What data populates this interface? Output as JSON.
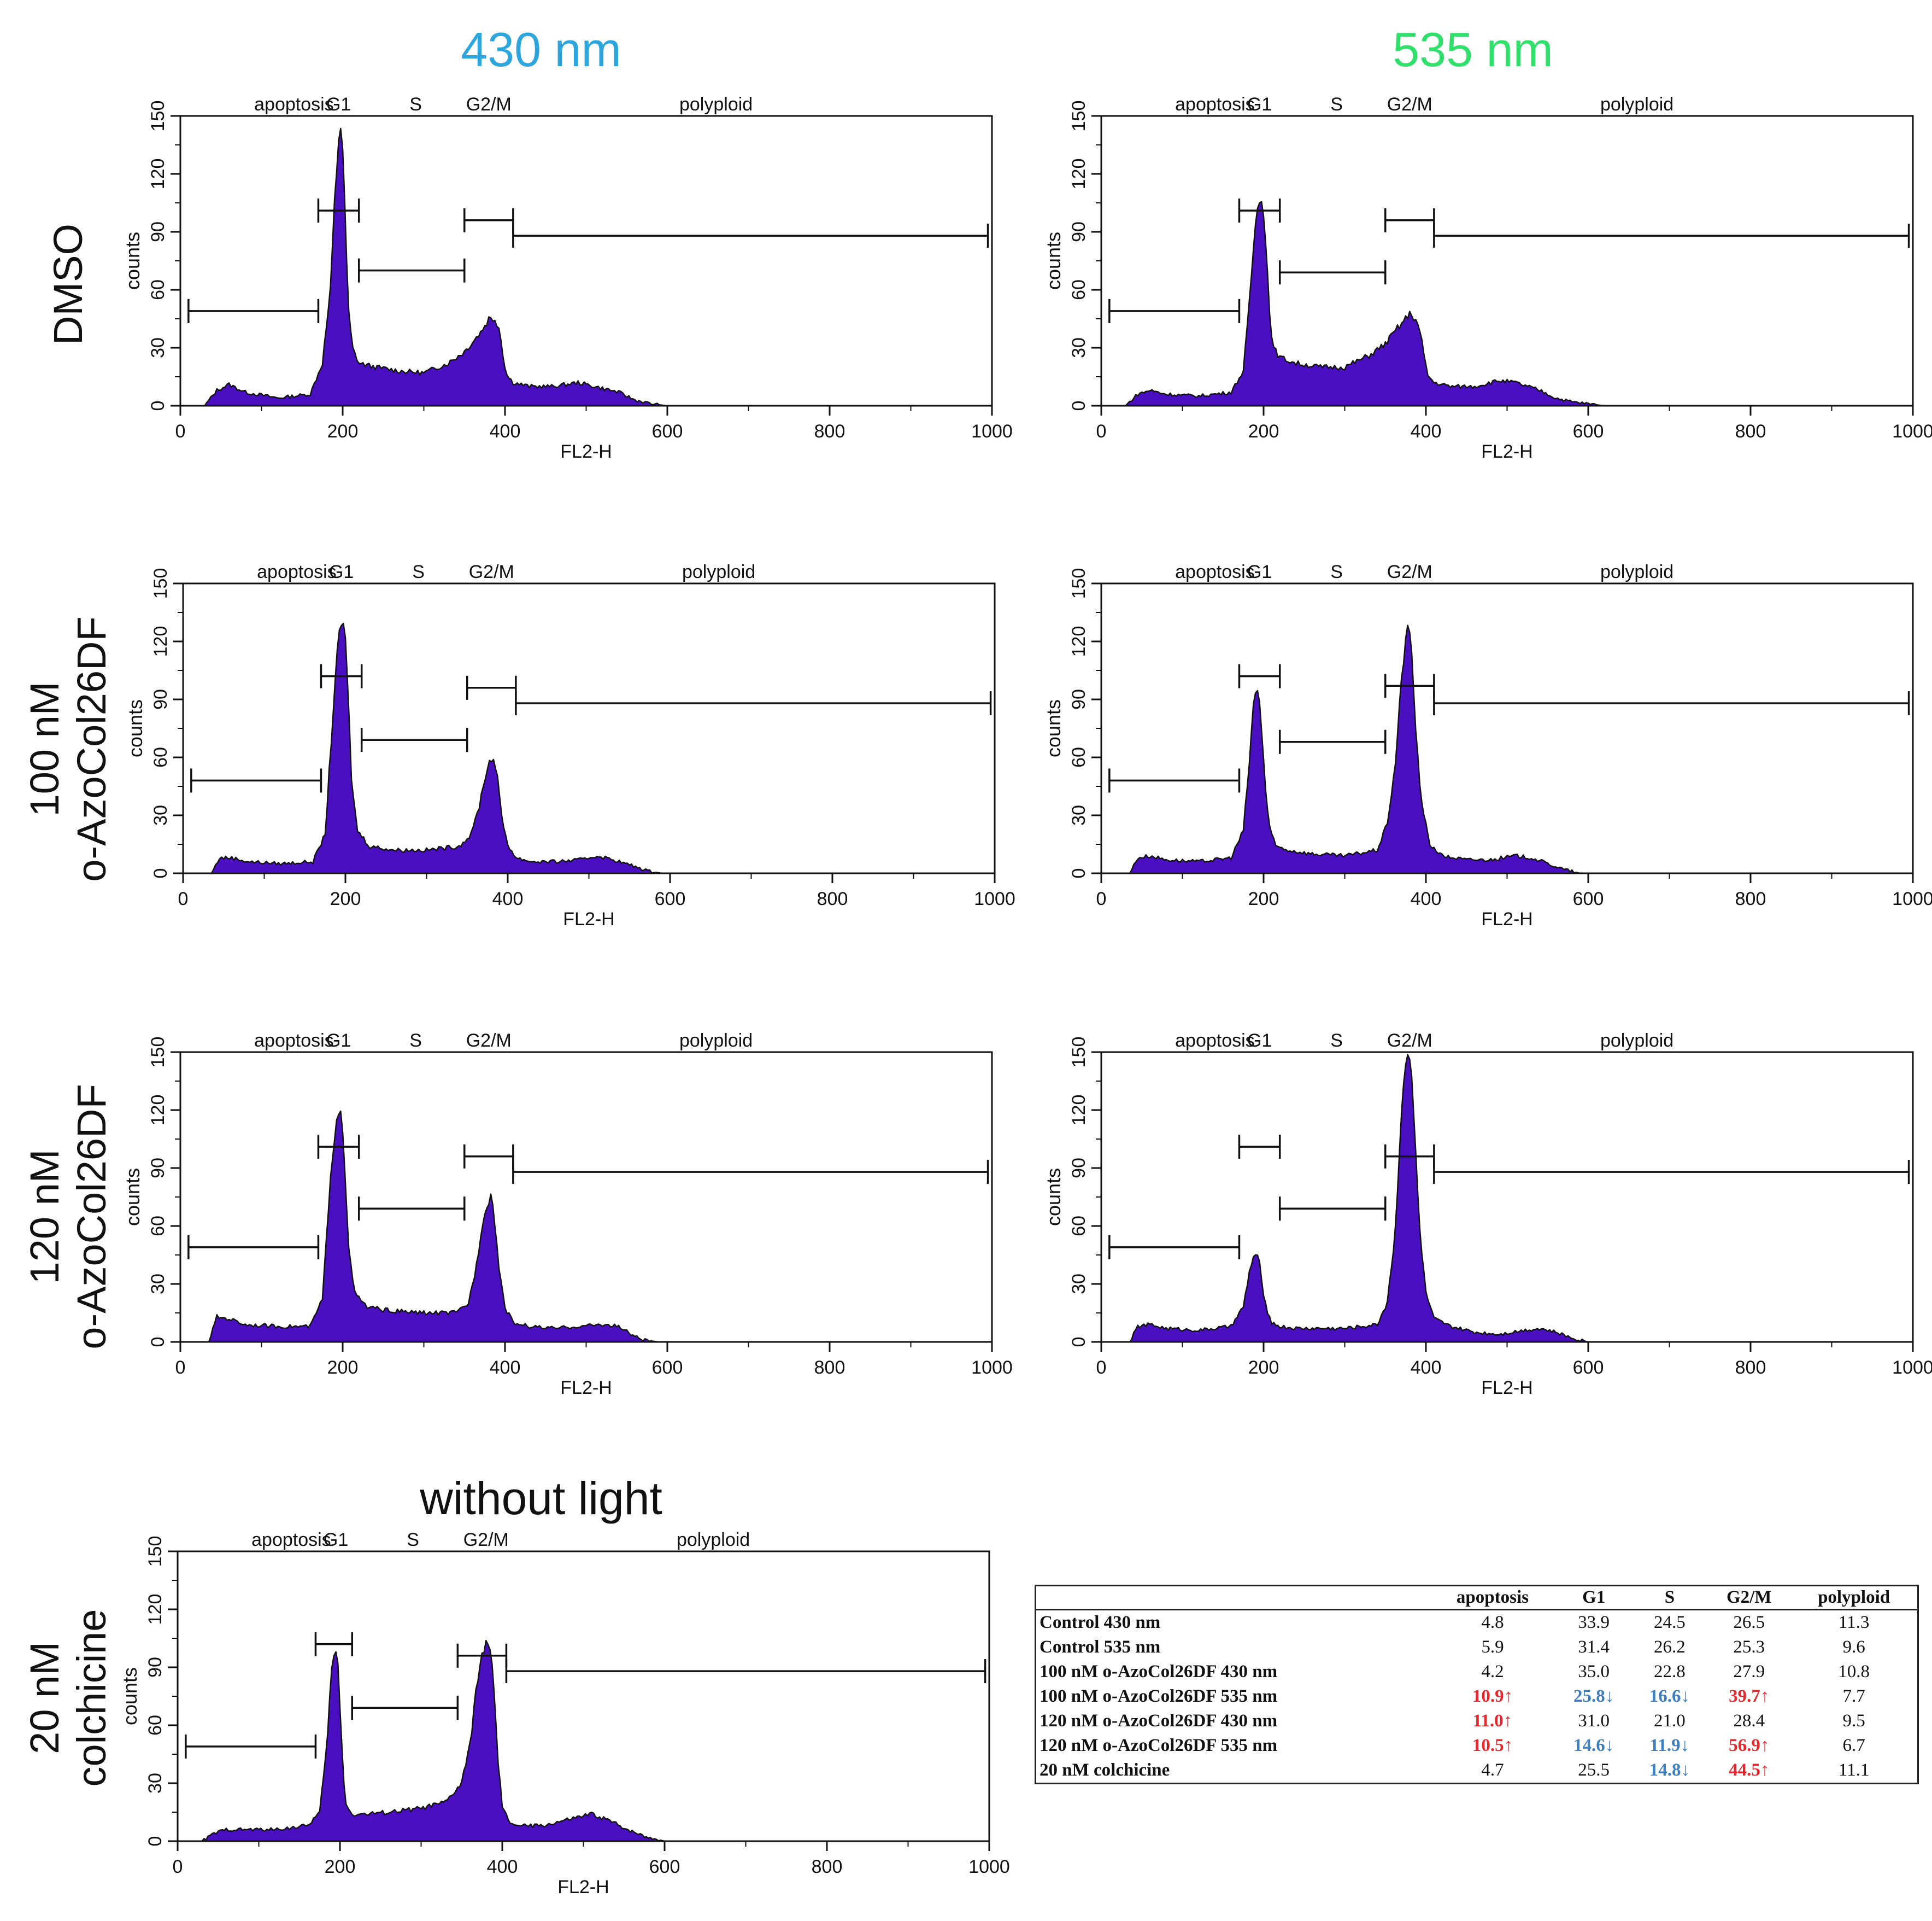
{
  "column_headers": [
    {
      "text": "430 nm",
      "color": "#2ca6dc"
    },
    {
      "text": "535 nm",
      "color": "#2fe06b"
    }
  ],
  "row_labels": [
    "DMSO",
    "100 nM\no-AzoCol26DF",
    "120 nM\no-AzoCol26DF",
    "20 nM\ncolchicine"
  ],
  "without_light_label": "without light",
  "colors": {
    "histogram_fill": "#4b0fc2",
    "histogram_edge": "#111111",
    "up_arrow": "#e8262c",
    "down_arrow": "#3d7fc1"
  },
  "chart_data": [
    {
      "type": "area",
      "id": "dmso-430",
      "xlabel": "FL2-H",
      "ylabel": "counts",
      "xlim": [
        0,
        1000
      ],
      "ylim": [
        0,
        150
      ],
      "xticks": [
        0,
        200,
        400,
        600,
        800,
        1000
      ],
      "yticks": [
        0,
        30,
        60,
        90,
        120,
        150
      ],
      "gate_labels": [
        "apoptosis",
        "G1",
        "S",
        "G2/M",
        "polyploid"
      ],
      "gates": [
        {
          "from": 10,
          "to": 170,
          "y": 49
        },
        {
          "from": 170,
          "to": 220,
          "y": 101
        },
        {
          "from": 220,
          "to": 350,
          "y": 70
        },
        {
          "from": 350,
          "to": 410,
          "y": 96
        },
        {
          "from": 410,
          "to": 995,
          "y": 88
        }
      ],
      "histogram": {
        "x": [
          0,
          30,
          45,
          60,
          80,
          120,
          160,
          175,
          185,
          190,
          195,
          198,
          200,
          203,
          207,
          212,
          220,
          240,
          270,
          300,
          330,
          350,
          370,
          380,
          388,
          393,
          398,
          402,
          410,
          430,
          460,
          490,
          510,
          540,
          560,
          580,
          600,
          620,
          1000
        ],
        "y": [
          0,
          0,
          8,
          11,
          7,
          4,
          6,
          22,
          60,
          105,
          138,
          146,
          133,
          98,
          50,
          30,
          22,
          20,
          18,
          17,
          22,
          28,
          38,
          45,
          45,
          40,
          25,
          16,
          12,
          10,
          10,
          12,
          10,
          7,
          3,
          1,
          0,
          0,
          0
        ]
      }
    },
    {
      "type": "area",
      "id": "dmso-535",
      "xlabel": "FL2-H",
      "ylabel": "counts",
      "xlim": [
        0,
        1000
      ],
      "ylim": [
        0,
        150
      ],
      "xticks": [
        0,
        200,
        400,
        600,
        800,
        1000
      ],
      "yticks": [
        0,
        30,
        60,
        90,
        120,
        150
      ],
      "gate_labels": [
        "apoptosis",
        "G1",
        "S",
        "G2/M",
        "polyploid"
      ],
      "gates": [
        {
          "from": 10,
          "to": 170,
          "y": 49
        },
        {
          "from": 170,
          "to": 220,
          "y": 101
        },
        {
          "from": 220,
          "to": 350,
          "y": 69
        },
        {
          "from": 350,
          "to": 410,
          "y": 96
        },
        {
          "from": 410,
          "to": 995,
          "y": 88
        }
      ],
      "histogram": {
        "x": [
          0,
          30,
          45,
          60,
          80,
          120,
          160,
          175,
          182,
          188,
          193,
          197,
          200,
          204,
          208,
          212,
          220,
          240,
          270,
          300,
          330,
          350,
          365,
          375,
          382,
          388,
          393,
          398,
          402,
          410,
          430,
          460,
          490,
          510,
          540,
          560,
          580,
          600,
          620,
          1000
        ],
        "y": [
          0,
          0,
          6,
          8,
          6,
          5,
          7,
          18,
          50,
          85,
          105,
          110,
          100,
          75,
          45,
          30,
          25,
          22,
          20,
          20,
          26,
          32,
          40,
          45,
          48,
          44,
          38,
          25,
          16,
          12,
          10,
          10,
          13,
          12,
          8,
          4,
          2,
          1,
          0,
          0
        ]
      }
    },
    {
      "type": "area",
      "id": "100nm-430",
      "xlabel": "FL2-H",
      "ylabel": "counts",
      "xlim": [
        0,
        1000
      ],
      "ylim": [
        0,
        150
      ],
      "xticks": [
        0,
        200,
        400,
        600,
        800,
        1000
      ],
      "yticks": [
        0,
        30,
        60,
        90,
        120,
        150
      ],
      "gate_labels": [
        "apoptosis",
        "G1",
        "S",
        "G2/M",
        "polyploid"
      ],
      "gates": [
        {
          "from": 10,
          "to": 170,
          "y": 48
        },
        {
          "from": 170,
          "to": 220,
          "y": 102
        },
        {
          "from": 220,
          "to": 350,
          "y": 69
        },
        {
          "from": 350,
          "to": 410,
          "y": 96
        },
        {
          "from": 410,
          "to": 995,
          "y": 88
        }
      ],
      "histogram": {
        "x": [
          0,
          35,
          45,
          60,
          80,
          120,
          160,
          175,
          182,
          188,
          193,
          197,
          200,
          204,
          208,
          215,
          230,
          260,
          300,
          340,
          355,
          365,
          372,
          378,
          382,
          386,
          392,
          400,
          410,
          430,
          460,
          490,
          510,
          530,
          545,
          560,
          575,
          590,
          1000
        ],
        "y": [
          0,
          0,
          8,
          8,
          6,
          5,
          6,
          20,
          65,
          105,
          125,
          132,
          120,
          85,
          45,
          22,
          14,
          12,
          12,
          14,
          20,
          35,
          50,
          58,
          60,
          55,
          30,
          15,
          8,
          6,
          6,
          7,
          9,
          7,
          5,
          3,
          1,
          0,
          0
        ]
      }
    },
    {
      "type": "area",
      "id": "100nm-535",
      "xlabel": "FL2-H",
      "ylabel": "counts",
      "xlim": [
        0,
        1000
      ],
      "ylim": [
        0,
        150
      ],
      "xticks": [
        0,
        200,
        400,
        600,
        800,
        1000
      ],
      "yticks": [
        0,
        30,
        60,
        90,
        120,
        150
      ],
      "gate_labels": [
        "apoptosis",
        "G1",
        "S",
        "G2/M",
        "polyploid"
      ],
      "gates": [
        {
          "from": 10,
          "to": 170,
          "y": 48
        },
        {
          "from": 170,
          "to": 220,
          "y": 102
        },
        {
          "from": 220,
          "to": 350,
          "y": 68
        },
        {
          "from": 350,
          "to": 410,
          "y": 97
        },
        {
          "from": 410,
          "to": 995,
          "y": 88
        }
      ],
      "histogram": {
        "x": [
          0,
          35,
          45,
          60,
          80,
          120,
          160,
          175,
          182,
          187,
          191,
          195,
          199,
          203,
          208,
          215,
          230,
          260,
          300,
          340,
          352,
          362,
          370,
          375,
          379,
          383,
          388,
          395,
          405,
          420,
          450,
          480,
          510,
          530,
          550,
          570,
          590,
          1000
        ],
        "y": [
          0,
          0,
          8,
          9,
          7,
          6,
          8,
          22,
          55,
          85,
          96,
          90,
          65,
          40,
          22,
          14,
          12,
          10,
          9,
          12,
          25,
          55,
          100,
          122,
          128,
          112,
          70,
          35,
          15,
          9,
          7,
          7,
          9,
          8,
          5,
          2,
          0,
          0
        ]
      }
    },
    {
      "type": "area",
      "id": "120nm-430",
      "xlabel": "FL2-H",
      "ylabel": "counts",
      "xlim": [
        0,
        1000
      ],
      "ylim": [
        0,
        150
      ],
      "xticks": [
        0,
        200,
        400,
        600,
        800,
        1000
      ],
      "yticks": [
        0,
        30,
        60,
        90,
        120,
        150
      ],
      "gate_labels": [
        "apoptosis",
        "G1",
        "S",
        "G2/M",
        "polyploid"
      ],
      "gates": [
        {
          "from": 10,
          "to": 170,
          "y": 49
        },
        {
          "from": 170,
          "to": 220,
          "y": 101
        },
        {
          "from": 220,
          "to": 350,
          "y": 69
        },
        {
          "from": 350,
          "to": 410,
          "y": 96
        },
        {
          "from": 410,
          "to": 995,
          "y": 88
        }
      ],
      "histogram": {
        "x": [
          0,
          35,
          45,
          60,
          80,
          120,
          160,
          175,
          182,
          188,
          193,
          197,
          200,
          204,
          208,
          215,
          230,
          260,
          300,
          340,
          355,
          365,
          372,
          378,
          382,
          386,
          392,
          400,
          410,
          430,
          460,
          490,
          520,
          540,
          555,
          570,
          590,
          1000
        ],
        "y": [
          0,
          0,
          13,
          12,
          9,
          8,
          8,
          22,
          65,
          100,
          118,
          122,
          110,
          80,
          45,
          25,
          18,
          16,
          15,
          15,
          20,
          40,
          62,
          72,
          76,
          70,
          40,
          18,
          10,
          8,
          7,
          8,
          9,
          8,
          4,
          1,
          0,
          0
        ]
      }
    },
    {
      "type": "area",
      "id": "120nm-535",
      "xlabel": "FL2-H",
      "ylabel": "counts",
      "xlim": [
        0,
        1000
      ],
      "ylim": [
        0,
        150
      ],
      "xticks": [
        0,
        200,
        400,
        600,
        800,
        1000
      ],
      "yticks": [
        0,
        30,
        60,
        90,
        120,
        150
      ],
      "gate_labels": [
        "apoptosis",
        "G1",
        "S",
        "G2/M",
        "polyploid"
      ],
      "gates": [
        {
          "from": 10,
          "to": 170,
          "y": 49
        },
        {
          "from": 170,
          "to": 220,
          "y": 101
        },
        {
          "from": 220,
          "to": 350,
          "y": 69
        },
        {
          "from": 350,
          "to": 410,
          "y": 96
        },
        {
          "from": 410,
          "to": 995,
          "y": 88
        }
      ],
      "histogram": {
        "x": [
          0,
          35,
          45,
          60,
          80,
          120,
          160,
          175,
          182,
          187,
          191,
          195,
          199,
          204,
          210,
          220,
          240,
          270,
          300,
          340,
          352,
          362,
          368,
          373,
          377,
          381,
          386,
          392,
          400,
          410,
          430,
          460,
          490,
          520,
          540,
          560,
          580,
          600,
          1000
        ],
        "y": [
          0,
          0,
          8,
          9,
          7,
          6,
          8,
          18,
          35,
          44,
          45,
          40,
          28,
          15,
          10,
          8,
          7,
          7,
          7,
          9,
          20,
          55,
          105,
          140,
          150,
          146,
          110,
          60,
          25,
          12,
          8,
          5,
          4,
          6,
          7,
          5,
          2,
          0,
          0
        ]
      }
    },
    {
      "type": "area",
      "id": "colchicine-dark",
      "xlabel": "FL2-H",
      "ylabel": "counts",
      "xlim": [
        0,
        1000
      ],
      "ylim": [
        0,
        150
      ],
      "xticks": [
        0,
        200,
        400,
        600,
        800,
        1000
      ],
      "yticks": [
        0,
        30,
        60,
        90,
        120,
        150
      ],
      "gate_labels": [
        "apoptosis",
        "G1",
        "S",
        "G2/M",
        "polyploid"
      ],
      "gates": [
        {
          "from": 10,
          "to": 170,
          "y": 49
        },
        {
          "from": 170,
          "to": 215,
          "y": 102
        },
        {
          "from": 215,
          "to": 345,
          "y": 69
        },
        {
          "from": 345,
          "to": 405,
          "y": 96
        },
        {
          "from": 405,
          "to": 995,
          "y": 88
        }
      ],
      "histogram": {
        "x": [
          0,
          30,
          45,
          60,
          80,
          120,
          160,
          175,
          183,
          189,
          193,
          197,
          200,
          204,
          208,
          215,
          230,
          260,
          300,
          330,
          350,
          362,
          370,
          377,
          382,
          386,
          390,
          395,
          400,
          408,
          420,
          450,
          480,
          510,
          530,
          560,
          580,
          600,
          1000
        ],
        "y": [
          0,
          0,
          4,
          6,
          6,
          6,
          8,
          15,
          45,
          85,
          98,
          95,
          70,
          35,
          18,
          14,
          14,
          15,
          17,
          20,
          30,
          55,
          85,
          100,
          104,
          98,
          75,
          40,
          18,
          10,
          8,
          8,
          11,
          14,
          11,
          5,
          2,
          0,
          0
        ]
      }
    },
    {
      "type": "table",
      "id": "summary-table",
      "columns": [
        "",
        "apoptosis",
        "G1",
        "S",
        "G2/M",
        "polyploid"
      ],
      "rows": [
        {
          "label": "Control 430 nm",
          "values": [
            "4.8",
            "33.9",
            "24.5",
            "26.5",
            "11.3"
          ],
          "flags": [
            "",
            "",
            "",
            "",
            ""
          ]
        },
        {
          "label": "Control 535 nm",
          "values": [
            "5.9",
            "31.4",
            "26.2",
            "25.3",
            "9.6"
          ],
          "flags": [
            "",
            "",
            "",
            "",
            ""
          ]
        },
        {
          "label": "100 nM o-AzoCol26DF 430 nm",
          "values": [
            "4.2",
            "35.0",
            "22.8",
            "27.9",
            "10.8"
          ],
          "flags": [
            "",
            "",
            "",
            "",
            ""
          ]
        },
        {
          "label": "100 nM o-AzoCol26DF 535 nm",
          "values": [
            "10.9↑",
            "25.8↓",
            "16.6↓",
            "39.7↑",
            "7.7"
          ],
          "flags": [
            "up",
            "down",
            "down",
            "up",
            ""
          ]
        },
        {
          "label": "120 nM o-AzoCol26DF 430 nm",
          "values": [
            "11.0↑",
            "31.0",
            "21.0",
            "28.4",
            "9.5"
          ],
          "flags": [
            "up",
            "",
            "",
            "",
            ""
          ]
        },
        {
          "label": "120 nM o-AzoCol26DF 535 nm",
          "values": [
            "10.5↑",
            "14.6↓",
            "11.9↓",
            "56.9↑",
            "6.7"
          ],
          "flags": [
            "up",
            "down",
            "down",
            "up",
            ""
          ]
        },
        {
          "label": "20 nM colchicine",
          "values": [
            "4.7",
            "25.5",
            "14.8↓",
            "44.5↑",
            "11.1"
          ],
          "flags": [
            "",
            "",
            "down",
            "up",
            ""
          ]
        }
      ]
    }
  ]
}
